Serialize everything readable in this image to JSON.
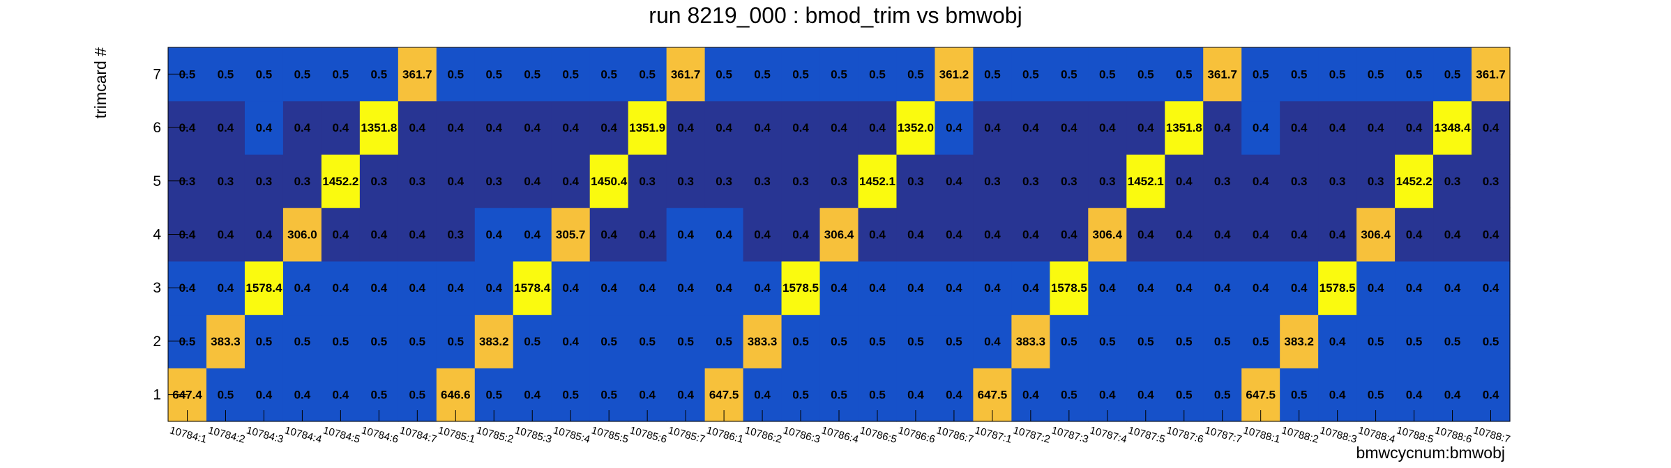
{
  "chart_data": {
    "type": "heatmap",
    "title": "run 8219_000 : bmod_trim vs bmwobj",
    "xlabel": "bmwcycnum:bmwobj",
    "ylabel": "trimcard #",
    "x_categories": [
      "10784:1",
      "10784:2",
      "10784:3",
      "10784:4",
      "10784:5",
      "10784:6",
      "10784:7",
      "10785:1",
      "10785:2",
      "10785:3",
      "10785:4",
      "10785:5",
      "10785:6",
      "10785:7",
      "10786:1",
      "10786:2",
      "10786:3",
      "10786:4",
      "10786:5",
      "10786:6",
      "10786:7",
      "10787:1",
      "10787:2",
      "10787:3",
      "10787:4",
      "10787:5",
      "10787:6",
      "10787:7",
      "10788:1",
      "10788:2",
      "10788:3",
      "10788:4",
      "10788:5",
      "10788:6",
      "10788:7"
    ],
    "y_categories": [
      "1",
      "2",
      "3",
      "4",
      "5",
      "6",
      "7"
    ],
    "values": [
      [
        "647.4",
        "0.5",
        "0.4",
        "0.4",
        "0.4",
        "0.5",
        "0.5",
        "646.6",
        "0.5",
        "0.4",
        "0.5",
        "0.5",
        "0.4",
        "0.4",
        "647.5",
        "0.4",
        "0.5",
        "0.5",
        "0.5",
        "0.4",
        "0.4",
        "647.5",
        "0.4",
        "0.5",
        "0.4",
        "0.4",
        "0.5",
        "0.5",
        "647.5",
        "0.5",
        "0.4",
        "0.5",
        "0.4",
        "0.4",
        "0.4"
      ],
      [
        "0.5",
        "383.3",
        "0.5",
        "0.5",
        "0.5",
        "0.5",
        "0.5",
        "0.5",
        "383.2",
        "0.5",
        "0.4",
        "0.5",
        "0.5",
        "0.5",
        "0.5",
        "383.3",
        "0.5",
        "0.5",
        "0.5",
        "0.5",
        "0.5",
        "0.4",
        "383.3",
        "0.5",
        "0.5",
        "0.5",
        "0.5",
        "0.5",
        "0.5",
        "383.2",
        "0.4",
        "0.5",
        "0.5",
        "0.5",
        "0.5"
      ],
      [
        "0.4",
        "0.4",
        "1578.4",
        "0.4",
        "0.4",
        "0.4",
        "0.4",
        "0.4",
        "0.4",
        "1578.4",
        "0.4",
        "0.4",
        "0.4",
        "0.4",
        "0.4",
        "0.4",
        "1578.5",
        "0.4",
        "0.4",
        "0.4",
        "0.4",
        "0.4",
        "0.4",
        "1578.5",
        "0.4",
        "0.4",
        "0.4",
        "0.4",
        "0.4",
        "0.4",
        "1578.5",
        "0.4",
        "0.4",
        "0.4",
        "0.4"
      ],
      [
        "0.4",
        "0.4",
        "0.4",
        "306.0",
        "0.4",
        "0.4",
        "0.4",
        "0.3",
        "0.4",
        "0.4",
        "305.7",
        "0.4",
        "0.4",
        "0.4",
        "0.4",
        "0.4",
        "0.4",
        "306.4",
        "0.4",
        "0.4",
        "0.4",
        "0.4",
        "0.4",
        "0.4",
        "306.4",
        "0.4",
        "0.4",
        "0.4",
        "0.4",
        "0.4",
        "0.4",
        "306.4",
        "0.4",
        "0.4",
        "0.4"
      ],
      [
        "0.3",
        "0.3",
        "0.3",
        "0.3",
        "1452.2",
        "0.3",
        "0.3",
        "0.4",
        "0.3",
        "0.4",
        "0.4",
        "1450.4",
        "0.3",
        "0.3",
        "0.3",
        "0.3",
        "0.3",
        "0.3",
        "1452.1",
        "0.3",
        "0.4",
        "0.3",
        "0.3",
        "0.3",
        "0.3",
        "1452.1",
        "0.4",
        "0.3",
        "0.4",
        "0.3",
        "0.3",
        "0.3",
        "1452.2",
        "0.3",
        "0.3"
      ],
      [
        "0.4",
        "0.4",
        "0.4",
        "0.4",
        "0.4",
        "1351.8",
        "0.4",
        "0.4",
        "0.4",
        "0.4",
        "0.4",
        "0.4",
        "1351.9",
        "0.4",
        "0.4",
        "0.4",
        "0.4",
        "0.4",
        "0.4",
        "1352.0",
        "0.4",
        "0.4",
        "0.4",
        "0.4",
        "0.4",
        "0.4",
        "1351.8",
        "0.4",
        "0.4",
        "0.4",
        "0.4",
        "0.4",
        "0.4",
        "1348.4",
        "0.4"
      ],
      [
        "0.5",
        "0.5",
        "0.5",
        "0.5",
        "0.5",
        "0.5",
        "361.7",
        "0.5",
        "0.5",
        "0.5",
        "0.5",
        "0.5",
        "0.5",
        "361.7",
        "0.5",
        "0.5",
        "0.5",
        "0.5",
        "0.5",
        "0.5",
        "361.2",
        "0.5",
        "0.5",
        "0.5",
        "0.5",
        "0.5",
        "0.5",
        "361.7",
        "0.5",
        "0.5",
        "0.5",
        "0.5",
        "0.5",
        "0.5",
        "361.7"
      ]
    ],
    "colors": {
      "dark_blue": "#283593",
      "blue": "#1651c9",
      "orange": "#f7c13b",
      "yellow": "#fafa0f"
    },
    "grid": false,
    "legend": "none"
  }
}
